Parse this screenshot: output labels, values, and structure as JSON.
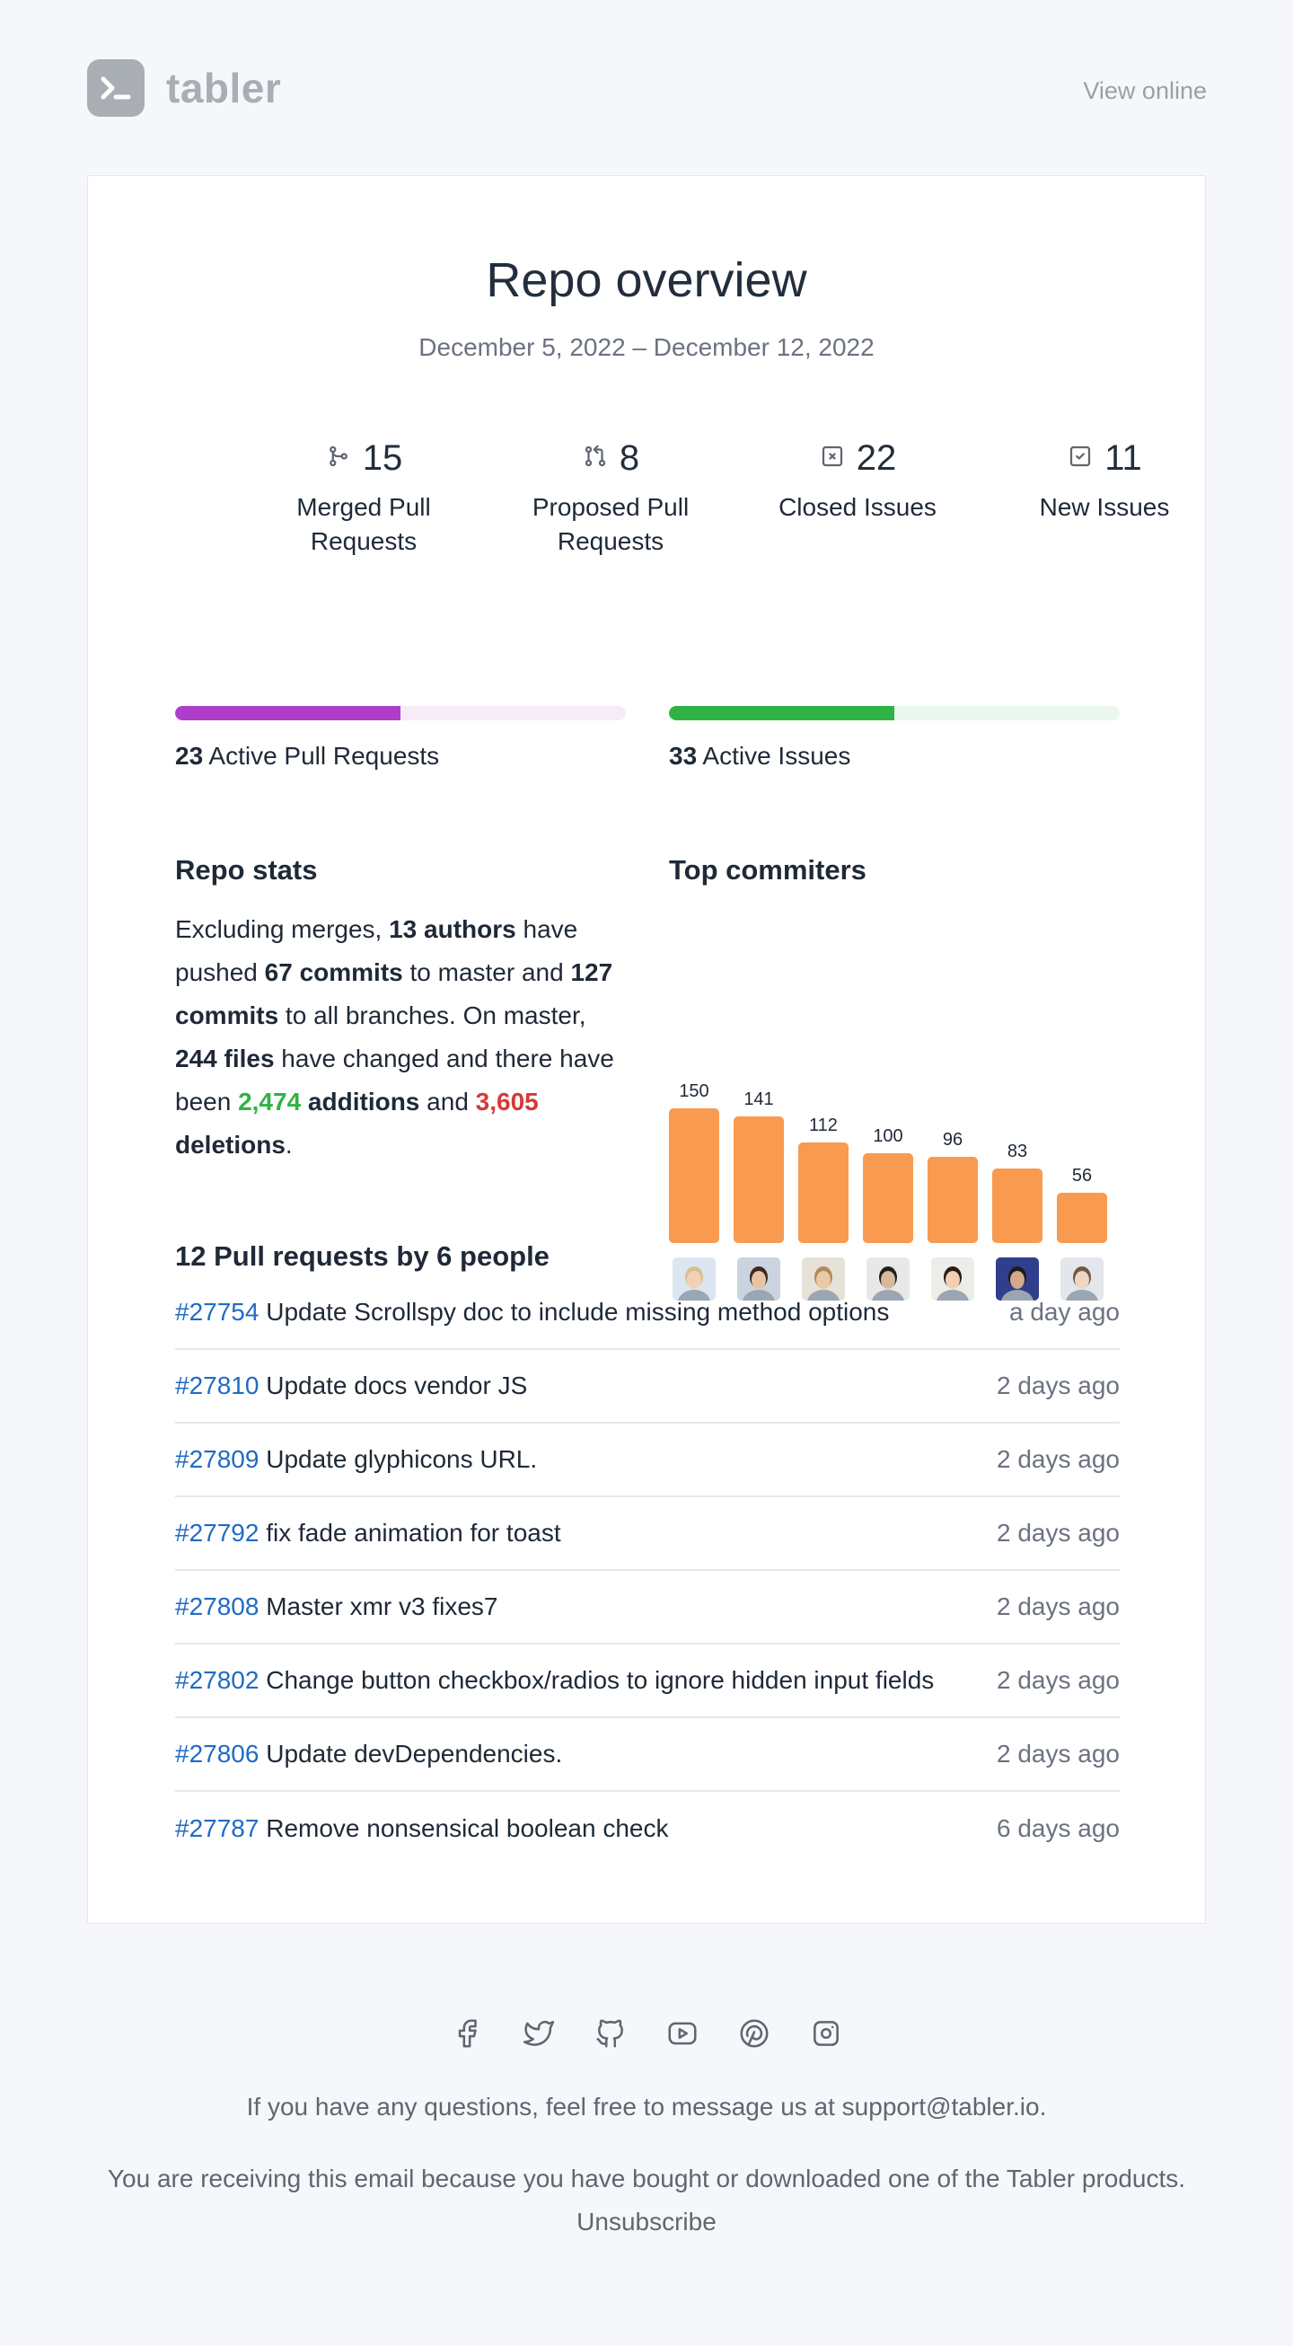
{
  "header": {
    "brand": "tabler",
    "view_online": "View online"
  },
  "overview": {
    "title": "Repo overview",
    "date_range": "December 5, 2022 – December 12, 2022"
  },
  "stats": [
    {
      "icon": "git-merge-icon",
      "value": "15",
      "label": "Merged Pull Requests"
    },
    {
      "icon": "git-pull-request-icon",
      "value": "8",
      "label": "Proposed Pull Requests"
    },
    {
      "icon": "square-x-icon",
      "value": "22",
      "label": "Closed Issues"
    },
    {
      "icon": "square-check-icon",
      "value": "11",
      "label": "New Issues"
    }
  ],
  "progress": {
    "pull_requests": {
      "count": "23",
      "label": "Active Pull Requests",
      "fill_fraction": 0.5,
      "color": "#ae3ec9",
      "track_color": "#f7ebfa"
    },
    "issues": {
      "count": "33",
      "label": "Active Issues",
      "fill_fraction": 0.5,
      "color": "#2fb344",
      "track_color": "#eaf7ec"
    }
  },
  "repo_stats": {
    "title": "Repo stats",
    "t1": "Excluding merges, ",
    "authors": "13 authors",
    "t2": " have pushed ",
    "commits_master": "67 commits",
    "t3": " to master and ",
    "commits_all": "127 commits",
    "t4": " to all branches. On master, ",
    "files": "244 files",
    "t5": " have changed and there have been ",
    "additions_num": "2,474",
    "additions_word": " additions",
    "t6": " and ",
    "deletions_num": "3,605",
    "deletions_word": " deletions",
    "t7": "."
  },
  "top_committers": {
    "title": "Top commiters",
    "bar_color": "#f89a50"
  },
  "chart_data": {
    "type": "bar",
    "categories": [
      "committer-1",
      "committer-2",
      "committer-3",
      "committer-4",
      "committer-5",
      "committer-6",
      "committer-7"
    ],
    "values": [
      150,
      141,
      112,
      100,
      96,
      83,
      56
    ],
    "title": "Top commiters",
    "ylim": [
      0,
      150
    ]
  },
  "pull_requests": {
    "title": "12 Pull requests by 6 people",
    "items": [
      {
        "number": "#27754",
        "title": "Update Scrollspy doc to include missing method options",
        "time": "a day ago"
      },
      {
        "number": "#27810",
        "title": "Update docs vendor JS",
        "time": "2 days ago"
      },
      {
        "number": "#27809",
        "title": "Update glyphicons URL.",
        "time": "2 days ago"
      },
      {
        "number": "#27792",
        "title": "fix fade animation for toast",
        "time": "2 days ago"
      },
      {
        "number": "#27808",
        "title": "Master xmr v3 fixes7",
        "time": "2 days ago"
      },
      {
        "number": "#27802",
        "title": "Change button checkbox/radios to ignore hidden input fields",
        "time": "2 days ago"
      },
      {
        "number": "#27806",
        "title": "Update devDependencies.",
        "time": "2 days ago"
      },
      {
        "number": "#27787",
        "title": "Remove nonsensical boolean check",
        "time": "6 days ago"
      }
    ]
  },
  "footer": {
    "social_icons": [
      "facebook-icon",
      "twitter-icon",
      "github-icon",
      "youtube-icon",
      "pinterest-icon",
      "instagram-icon"
    ],
    "questions": "If you have any questions, feel free to message us at support@tabler.io.",
    "receiving": "You are receiving this email because you have bought or downloaded one of the Tabler products.",
    "unsubscribe": "Unsubscribe"
  }
}
